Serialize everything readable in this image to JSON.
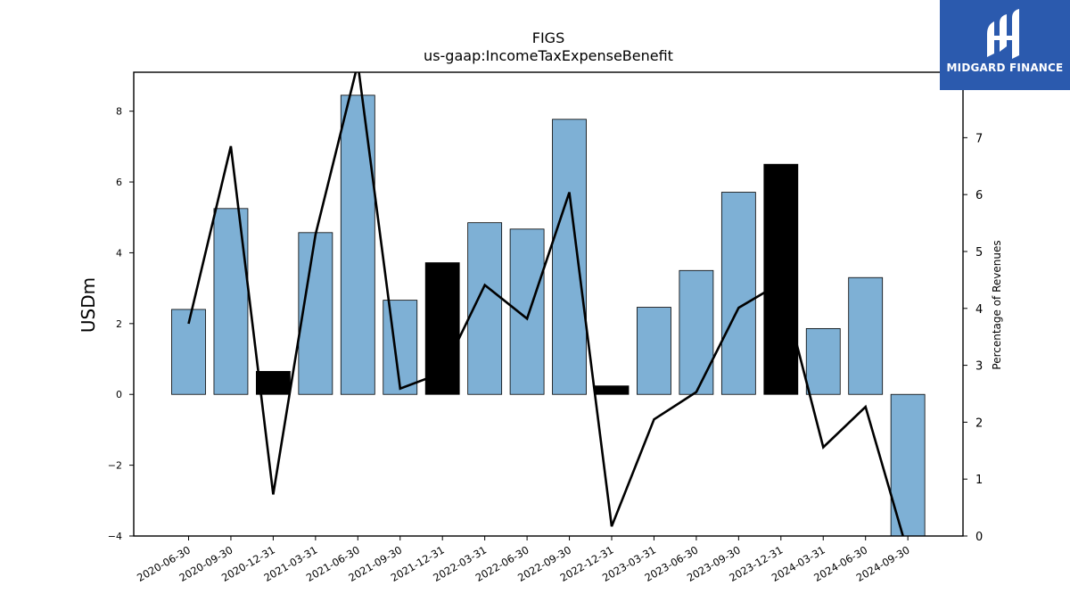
{
  "logo": {
    "text": "MIDGARD FINANCE"
  },
  "colors": {
    "bar": "#7eb0d5",
    "bar_highlight": "#000000",
    "line": "#000000",
    "logo_bg": "#2b5aae"
  },
  "chart_data": {
    "type": "bar",
    "title": "FIGS",
    "subtitle": "us-gaap:IncomeTaxExpenseBenefit",
    "ylabel": "USDm",
    "ylabel_right": "Percentage of Revenues",
    "ylim": [
      -4,
      9.1
    ],
    "ylim_right": [
      0,
      8.15
    ],
    "yticks": [
      -4,
      -2,
      0,
      2,
      4,
      6,
      8
    ],
    "yticks_right": [
      0,
      1,
      2,
      3,
      4,
      5,
      6,
      7
    ],
    "categories": [
      "2020-06-30",
      "2020-09-30",
      "2020-12-31",
      "2021-03-31",
      "2021-06-30",
      "2021-09-30",
      "2021-12-31",
      "2022-03-31",
      "2022-06-30",
      "2022-09-30",
      "2022-12-31",
      "2023-03-31",
      "2023-06-30",
      "2023-09-30",
      "2023-12-31",
      "2024-03-31",
      "2024-06-30",
      "2024-09-30"
    ],
    "series": [
      {
        "values": [
          2.4,
          5.25,
          0.65,
          4.57,
          8.45,
          2.66,
          3.72,
          4.85,
          4.67,
          7.77,
          0.24,
          2.46,
          3.5,
          5.71,
          6.5,
          1.86,
          3.3,
          -4.0
        ],
        "highlight": [
          false,
          false,
          true,
          false,
          false,
          false,
          true,
          false,
          false,
          false,
          true,
          false,
          false,
          false,
          true,
          false,
          false,
          false
        ]
      },
      {
        "axis": "right",
        "type": "line",
        "values": [
          3.73,
          6.85,
          0.73,
          5.3,
          8.3,
          2.59,
          2.87,
          4.41,
          3.82,
          6.04,
          0.17,
          2.05,
          2.53,
          4.01,
          4.45,
          1.56,
          2.27,
          -0.3
        ]
      }
    ]
  }
}
